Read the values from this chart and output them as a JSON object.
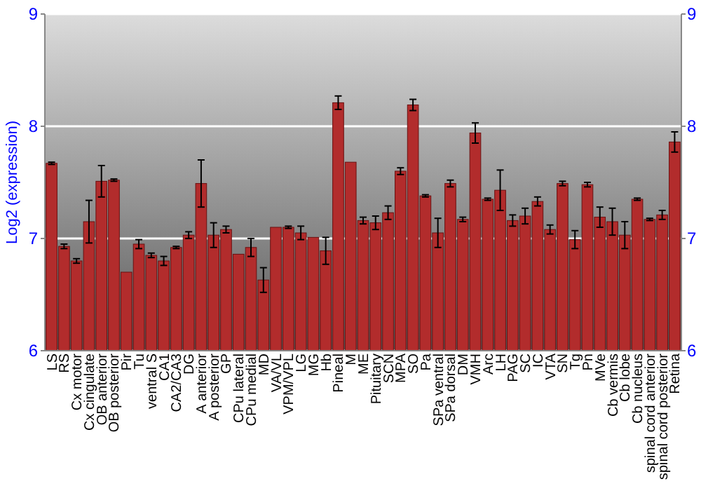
{
  "chart_data": {
    "type": "bar",
    "ylabel": "Log2 (expression)",
    "categories": [
      "LS",
      "RS",
      "Cx motor",
      "Cx cingulate",
      "OB anterior",
      "OB posterior",
      "Pir",
      "Tu",
      "ventral S",
      "CA1",
      "CA2/CA3",
      "DG",
      "A anterior",
      "A posterior",
      "GP",
      "CPu lateral",
      "CPu medial",
      "MD",
      "VA/VL",
      "VPM/VPL",
      "LG",
      "MG",
      "Hb",
      "Pineal",
      "M",
      "ME",
      "Pituitary",
      "SCN",
      "MPA",
      "SO",
      "Pa",
      "SPa ventral",
      "SPa dorsal",
      "DM",
      "VMH",
      "Arc",
      "LH",
      "PAG",
      "SC",
      "IC",
      "VTA",
      "SN",
      "Tg",
      "Pn",
      "MVe",
      "Cb vermis",
      "Cb lobe",
      "Cb nucleus",
      "spinal cord anterior",
      "spinal cord posterior",
      "Retina"
    ],
    "values": [
      7.67,
      6.93,
      6.8,
      7.15,
      7.51,
      7.52,
      6.7,
      6.95,
      6.85,
      6.8,
      6.92,
      7.03,
      7.49,
      7.03,
      7.08,
      6.86,
      6.92,
      6.63,
      7.1,
      7.1,
      7.05,
      7.01,
      6.89,
      8.21,
      7.68,
      7.16,
      7.14,
      7.23,
      7.6,
      8.19,
      7.38,
      7.05,
      7.49,
      7.17,
      7.94,
      7.35,
      7.43,
      7.16,
      7.2,
      7.33,
      7.08,
      7.49,
      6.99,
      7.48,
      7.19,
      7.15,
      7.03,
      7.35,
      7.17,
      7.21,
      7.86
    ],
    "errors": [
      0.01,
      0.02,
      0.02,
      0.19,
      0.14,
      0.01,
      null,
      0.04,
      0.02,
      0.04,
      0.01,
      0.03,
      0.21,
      0.11,
      0.03,
      null,
      0.08,
      0.11,
      null,
      0.01,
      0.06,
      null,
      0.12,
      0.06,
      null,
      0.03,
      0.06,
      0.06,
      0.03,
      0.05,
      0.01,
      0.13,
      0.03,
      0.02,
      0.09,
      0.01,
      0.18,
      0.05,
      0.07,
      0.04,
      0.04,
      0.02,
      0.08,
      0.02,
      0.09,
      0.12,
      0.12,
      0.01,
      0.01,
      0.04,
      0.09
    ],
    "color": "#b22c2c",
    "ylim": [
      6,
      9
    ],
    "yticks": [
      6,
      7,
      8,
      9
    ],
    "y2lim": [
      6,
      9
    ],
    "y2ticks": [
      6,
      7,
      8,
      9
    ],
    "grid": "y"
  }
}
